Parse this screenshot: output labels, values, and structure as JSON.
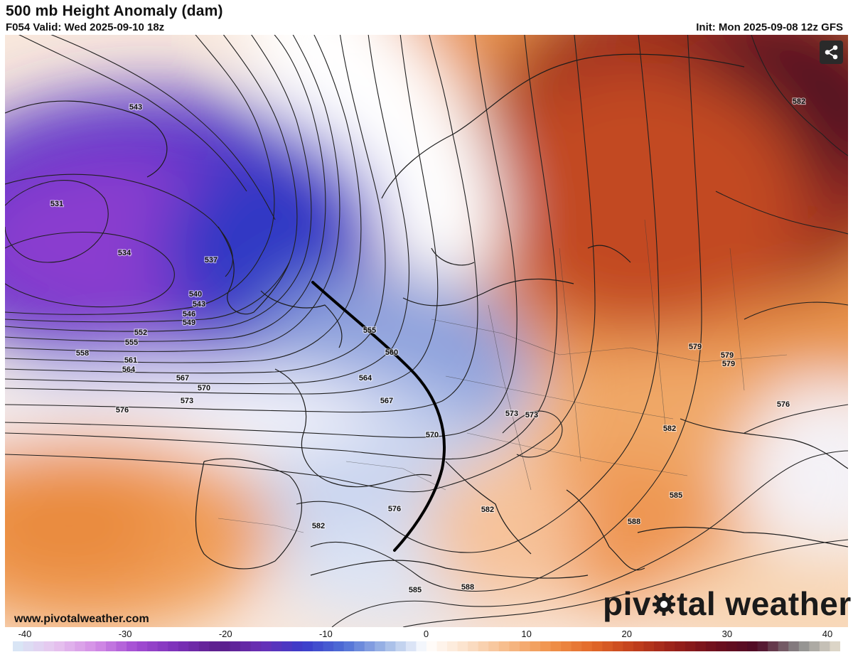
{
  "header": {
    "title": "500 mb Height Anomaly (dam)",
    "valid": "F054 Valid: Wed 2025-09-10 18z",
    "init": "Init: Mon 2025-09-08 12z GFS"
  },
  "footer": {
    "website": "www.pivotalweather.com",
    "brand_before": "piv",
    "brand_after": "tal weather"
  },
  "colorbar": {
    "ticks": [
      "-40",
      "-30",
      "-20",
      "-10",
      "0",
      "10",
      "20",
      "30",
      "40"
    ],
    "range": [
      -40,
      40
    ]
  },
  "contours": {
    "labels": [
      "543",
      "531",
      "534",
      "537",
      "540",
      "543",
      "546",
      "549",
      "552",
      "555",
      "558",
      "561",
      "564",
      "567",
      "570",
      "573",
      "576",
      "555",
      "560",
      "564",
      "567",
      "570",
      "573",
      "576",
      "579",
      "579",
      "579",
      "576",
      "582",
      "582",
      "582",
      "585",
      "588",
      "582",
      "585",
      "588",
      "573"
    ]
  },
  "icons": {
    "share": "share-icon",
    "logo_gear": "gear-icon"
  },
  "colors": {
    "deep_negative": "#7c2fcf",
    "negative": "#2b3fc6",
    "neutral": "#ffffff",
    "positive": "#f08a38",
    "deep_positive": "#6e0c1c",
    "front_line": "#000000"
  }
}
